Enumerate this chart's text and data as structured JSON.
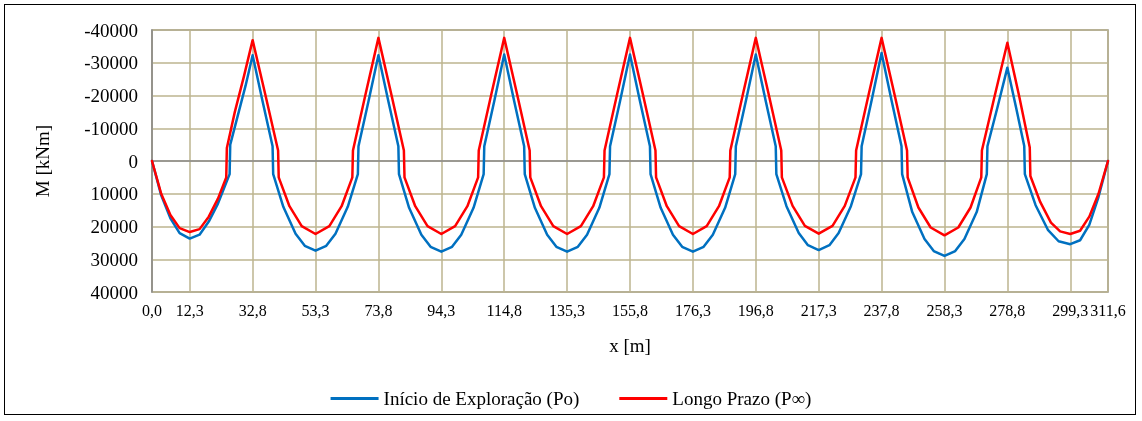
{
  "chart_data": {
    "type": "line",
    "xlabel": "x [m]",
    "ylabel": "M [kNm]",
    "xlim": [
      0,
      311.6
    ],
    "xticks": [
      {
        "value": 0,
        "label": "0,0"
      },
      {
        "value": 12.3,
        "label": "12,3"
      },
      {
        "value": 32.8,
        "label": "32,8"
      },
      {
        "value": 53.3,
        "label": "53,3"
      },
      {
        "value": 73.8,
        "label": "73,8"
      },
      {
        "value": 94.3,
        "label": "94,3"
      },
      {
        "value": 114.8,
        "label": "114,8"
      },
      {
        "value": 135.3,
        "label": "135,3"
      },
      {
        "value": 155.8,
        "label": "155,8"
      },
      {
        "value": 176.3,
        "label": "176,3"
      },
      {
        "value": 196.8,
        "label": "196,8"
      },
      {
        "value": 217.3,
        "label": "217,3"
      },
      {
        "value": 237.8,
        "label": "237,8"
      },
      {
        "value": 258.3,
        "label": "258,3"
      },
      {
        "value": 278.8,
        "label": "278,8"
      },
      {
        "value": 299.3,
        "label": "299,3"
      },
      {
        "value": 311.6,
        "label": "311,6"
      }
    ],
    "ylim": [
      40000,
      -40000
    ],
    "yticks": [
      -40000,
      -30000,
      -20000,
      -10000,
      0,
      10000,
      20000,
      30000,
      40000
    ],
    "grid": true,
    "legend": "bottom",
    "marker": "none",
    "line_style": "solid",
    "series": [
      {
        "name": "Início de Exploração (Po)",
        "color": "#0070c0",
        "x": [
          0,
          3,
          6,
          9,
          12.3,
          15.5,
          18.5,
          21.5,
          25.3,
          25.5,
          28,
          30.5,
          32.8,
          36,
          39.3,
          39.5,
          42.8,
          46.8,
          49.8,
          53.3,
          56.8,
          59.8,
          63.8,
          67.1,
          67.3,
          70.6,
          73.8,
          77,
          80.3,
          80.5,
          83.8,
          87.8,
          90.8,
          94.3,
          97.8,
          100.8,
          104.8,
          108.1,
          108.3,
          111.6,
          114.8,
          118,
          121.3,
          121.5,
          124.8,
          128.8,
          131.8,
          135.3,
          138.8,
          141.8,
          145.8,
          149.1,
          149.3,
          152.6,
          155.8,
          159,
          162.3,
          162.5,
          165.8,
          169.8,
          172.8,
          176.3,
          179.8,
          182.8,
          186.8,
          190.1,
          190.3,
          193.6,
          196.8,
          200,
          203.3,
          203.5,
          206.8,
          210.8,
          213.8,
          217.3,
          220.8,
          223.8,
          227.8,
          231.1,
          231.3,
          234.6,
          237.8,
          241,
          244.3,
          244.5,
          247.8,
          251.8,
          254.8,
          258.3,
          261.8,
          264.8,
          268.8,
          272.1,
          272.3,
          275.6,
          278.8,
          281.6,
          284.3,
          284.5,
          288,
          292,
          295.5,
          299.3,
          302.5,
          305.5,
          308.5,
          311.6
        ],
        "values": [
          0,
          10500,
          17500,
          22000,
          23700,
          22500,
          18500,
          13000,
          4000,
          -5000,
          -14000,
          -23000,
          -32300,
          -18400,
          -4500,
          4000,
          14000,
          22200,
          25900,
          27400,
          25900,
          22200,
          14000,
          4000,
          -4500,
          -18400,
          -32300,
          -18400,
          -4500,
          4000,
          14300,
          22500,
          26200,
          27700,
          26200,
          22500,
          14300,
          4000,
          -4500,
          -18500,
          -32500,
          -18500,
          -4500,
          4000,
          14300,
          22500,
          26200,
          27700,
          26200,
          22500,
          14300,
          4000,
          -4500,
          -18500,
          -32500,
          -18500,
          -4500,
          4000,
          14300,
          22500,
          26200,
          27700,
          26200,
          22500,
          14300,
          4000,
          -4500,
          -18500,
          -32500,
          -18500,
          -4500,
          4000,
          13800,
          22000,
          25700,
          27200,
          25700,
          22000,
          13800,
          4000,
          -4500,
          -18700,
          -33000,
          -18700,
          -4500,
          4000,
          15600,
          23800,
          27500,
          29000,
          27500,
          23800,
          15600,
          4000,
          -4500,
          -16500,
          -28500,
          -16500,
          -4600,
          4000,
          13500,
          21000,
          24500,
          25400,
          24200,
          19500,
          11000,
          0
        ]
      },
      {
        "name": "Longo Prazo (P∞)",
        "color": "#ff0000",
        "x": [
          0,
          3,
          6,
          9,
          12.3,
          15.5,
          18.5,
          21.5,
          24.2,
          24.4,
          27,
          30,
          32.8,
          37,
          41.1,
          41.3,
          44.8,
          48.8,
          53.3,
          57.8,
          61.8,
          65.3,
          65.5,
          69.6,
          73.8,
          78,
          82.1,
          82.3,
          85.8,
          89.8,
          94.3,
          98.8,
          102.8,
          106.3,
          106.5,
          110.6,
          114.8,
          119,
          123.1,
          123.3,
          126.8,
          130.8,
          135.3,
          139.8,
          143.8,
          147.3,
          147.5,
          151.6,
          155.8,
          160,
          164.1,
          164.3,
          167.8,
          171.8,
          176.3,
          180.8,
          184.8,
          188.3,
          188.5,
          192.6,
          196.8,
          201,
          205.1,
          205.3,
          208.8,
          212.8,
          217.3,
          221.8,
          225.8,
          229.3,
          229.5,
          233.6,
          237.8,
          242,
          246.1,
          246.3,
          249.8,
          253.8,
          258.3,
          262.8,
          266.8,
          270.3,
          270.5,
          274.6,
          278.8,
          282.6,
          286.1,
          286.3,
          289.5,
          293,
          296,
          299.3,
          302.5,
          305.5,
          308.5,
          311.6
        ],
        "values": [
          0,
          10000,
          16500,
          20500,
          21700,
          20800,
          17000,
          11500,
          5000,
          -4000,
          -15000,
          -26000,
          -36900,
          -20000,
          -3200,
          5000,
          13800,
          19900,
          22300,
          19900,
          13800,
          5000,
          -3200,
          -20400,
          -37600,
          -20400,
          -3200,
          5000,
          13800,
          19900,
          22300,
          19900,
          13800,
          5000,
          -3200,
          -20400,
          -37600,
          -20400,
          -3200,
          5000,
          13800,
          19900,
          22300,
          19900,
          13800,
          5000,
          -3200,
          -20400,
          -37600,
          -20400,
          -3200,
          5000,
          13800,
          19900,
          22300,
          19900,
          13800,
          5000,
          -3200,
          -20400,
          -37600,
          -20400,
          -3200,
          5000,
          13700,
          19800,
          22200,
          19800,
          13700,
          5000,
          -3200,
          -20400,
          -37600,
          -20400,
          -3200,
          5000,
          14200,
          20300,
          22700,
          20300,
          14200,
          5000,
          -3200,
          -19600,
          -36100,
          -20000,
          -4100,
          4600,
          12500,
          18800,
          21500,
          22300,
          21300,
          17000,
          10000,
          0
        ]
      }
    ]
  }
}
